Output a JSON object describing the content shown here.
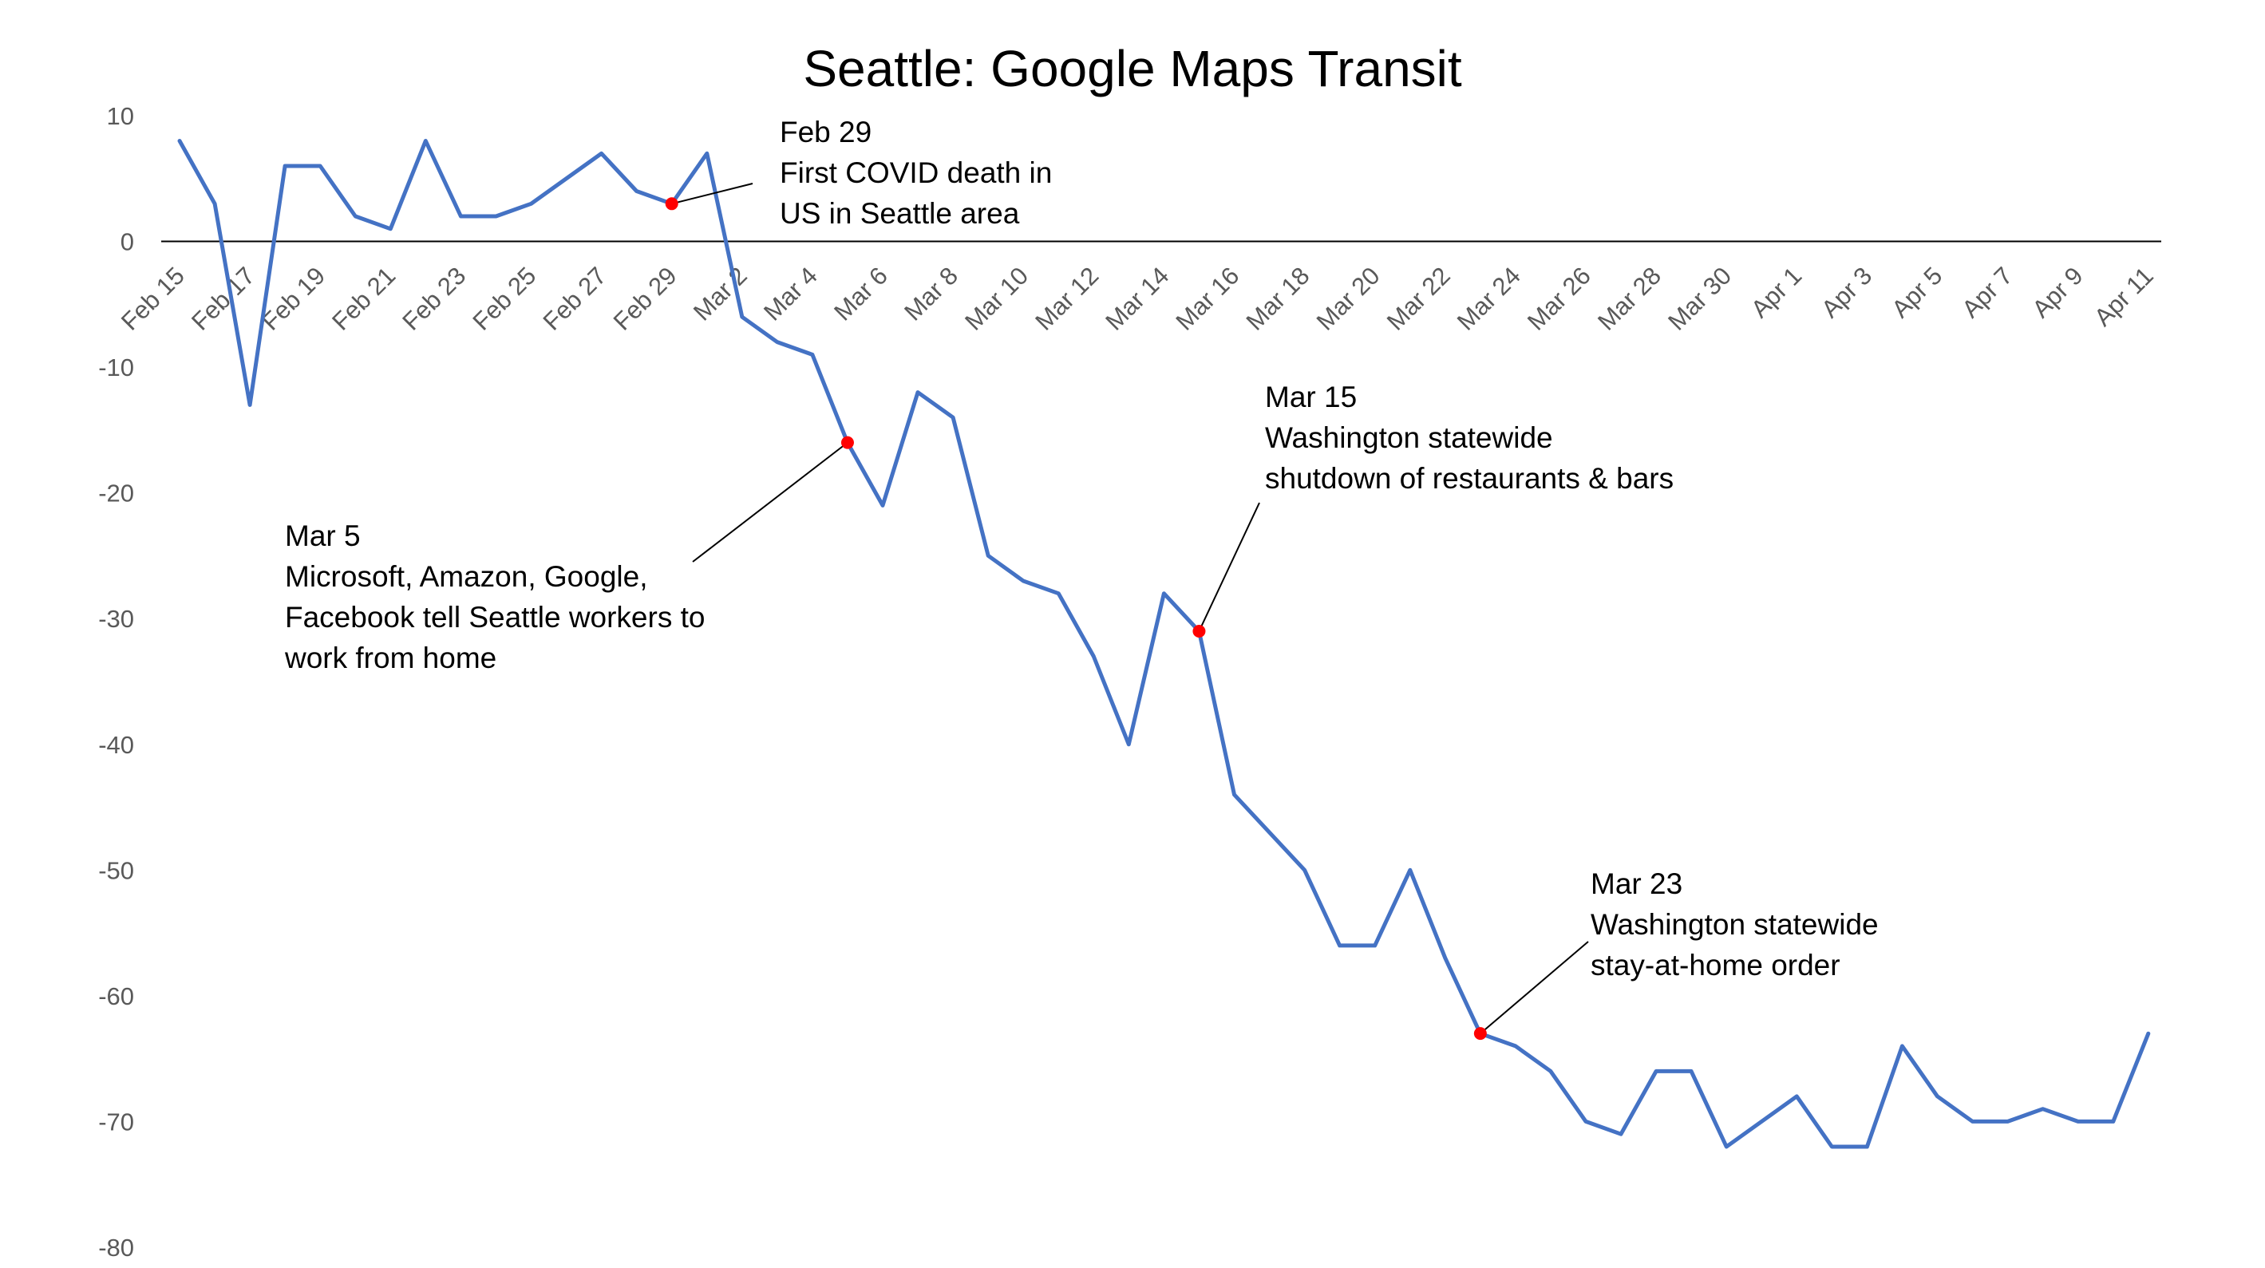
{
  "chart_data": {
    "type": "line",
    "title": "Seattle: Google Maps Transit",
    "xlabel": "",
    "ylabel": "",
    "ylim": [
      -80,
      10
    ],
    "y_ticks": [
      10,
      0,
      -10,
      -20,
      -30,
      -40,
      -50,
      -60,
      -70,
      -80
    ],
    "grid": false,
    "legend": "none",
    "x_tick_labels": [
      "Feb 15",
      "Feb 17",
      "Feb 19",
      "Feb 21",
      "Feb 23",
      "Feb 25",
      "Feb 27",
      "Feb 29",
      "Mar 2",
      "Mar 4",
      "Mar 6",
      "Mar 8",
      "Mar 10",
      "Mar 12",
      "Mar 14",
      "Mar 16",
      "Mar 18",
      "Mar 20",
      "Mar 22",
      "Mar 24",
      "Mar 26",
      "Mar 28",
      "Mar 30",
      "Apr 1",
      "Apr 3",
      "Apr 5",
      "Apr 7",
      "Apr 9",
      "Apr 11"
    ],
    "x": [
      "Feb 15",
      "Feb 16",
      "Feb 17",
      "Feb 18",
      "Feb 19",
      "Feb 20",
      "Feb 21",
      "Feb 22",
      "Feb 23",
      "Feb 24",
      "Feb 25",
      "Feb 26",
      "Feb 27",
      "Feb 28",
      "Feb 29",
      "Mar 1",
      "Mar 2",
      "Mar 3",
      "Mar 4",
      "Mar 5",
      "Mar 6",
      "Mar 7",
      "Mar 8",
      "Mar 9",
      "Mar 10",
      "Mar 11",
      "Mar 12",
      "Mar 13",
      "Mar 14",
      "Mar 15",
      "Mar 16",
      "Mar 17",
      "Mar 18",
      "Mar 19",
      "Mar 20",
      "Mar 21",
      "Mar 22",
      "Mar 23",
      "Mar 24",
      "Mar 25",
      "Mar 26",
      "Mar 27",
      "Mar 28",
      "Mar 29",
      "Mar 30",
      "Mar 31",
      "Apr 1",
      "Apr 2",
      "Apr 3",
      "Apr 4",
      "Apr 5",
      "Apr 6",
      "Apr 7",
      "Apr 8",
      "Apr 9",
      "Apr 10",
      "Apr 11"
    ],
    "series": [
      {
        "color": "#4472c4",
        "values": [
          8,
          3,
          -13,
          6,
          6,
          2,
          1,
          8,
          2,
          2,
          3,
          5,
          7,
          4,
          3,
          7,
          -6,
          -8,
          -9,
          -16,
          -21,
          -12,
          -14,
          -25,
          -27,
          -28,
          -33,
          -40,
          -28,
          -31,
          -44,
          -47,
          -50,
          -56,
          -56,
          -50,
          -57,
          -63,
          -64,
          -66,
          -70,
          -71,
          -66,
          -66,
          -72,
          -70,
          -68,
          -72,
          -72,
          -64,
          -68,
          -70,
          -70,
          -69,
          -70,
          -70,
          -63
        ]
      }
    ],
    "marker_color": "#ff0000",
    "annotations": [
      {
        "date": "Feb 29",
        "value": 3,
        "lines": [
          "Feb 29",
          "First COVID death in",
          "US in Seattle area"
        ]
      },
      {
        "date": "Mar 5",
        "value": -16,
        "lines": [
          "Mar 5",
          "Microsoft, Amazon, Google,",
          "Facebook tell Seattle workers to",
          "work from home"
        ]
      },
      {
        "date": "Mar 15",
        "value": -31,
        "lines": [
          "Mar 15",
          "Washington statewide",
          "shutdown of restaurants & bars"
        ]
      },
      {
        "date": "Mar 23",
        "value": -63,
        "lines": [
          "Mar 23",
          "Washington statewide",
          "stay-at-home order"
        ]
      }
    ]
  }
}
